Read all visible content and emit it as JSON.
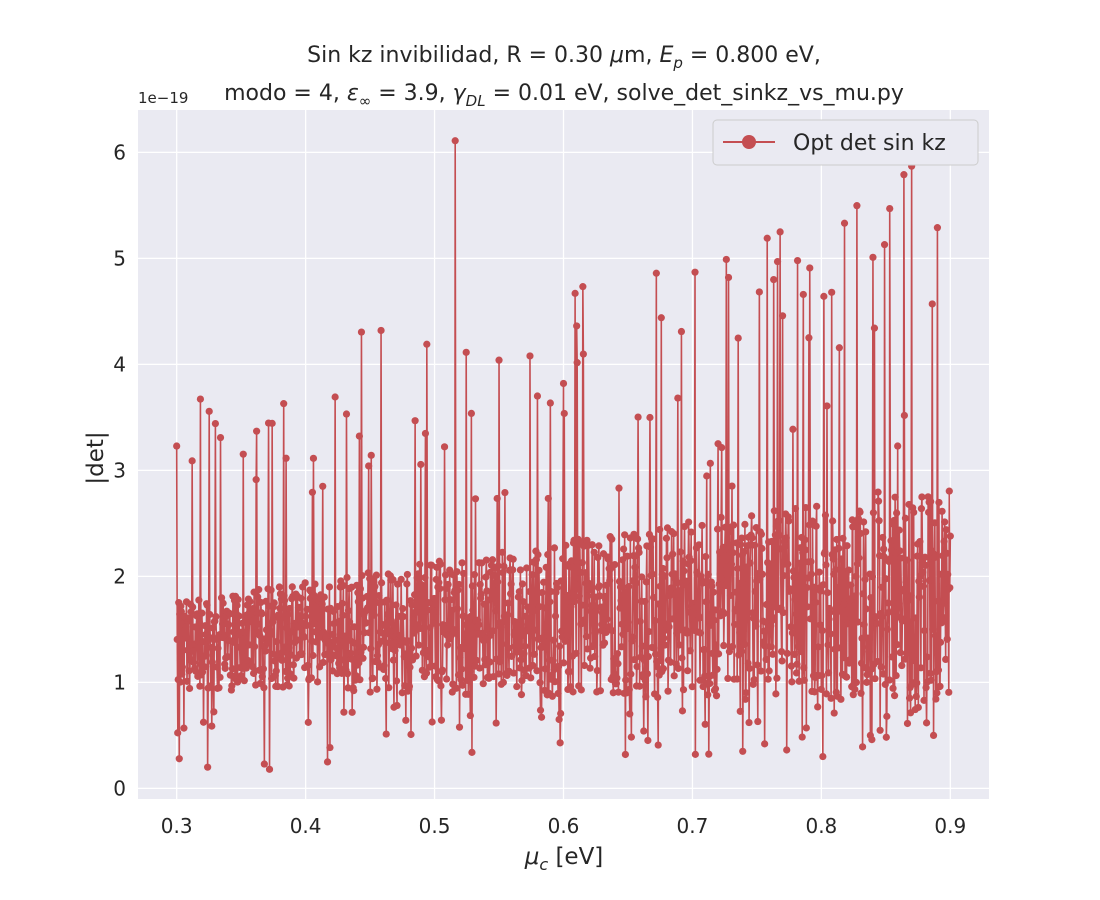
{
  "chart_data": {
    "type": "line",
    "title_lines": [
      "Sin kz invibilidad, R = 0.30 μm, E_p = 0.800 eV,",
      "modo = 4, ε_∞ = 3.9, γ_DL = 0.01 eV, solve_det_sinkz_vs_mu.py"
    ],
    "xlabel": "μ_c [eV]",
    "ylabel": "|det|",
    "y_offset_label": "1e−19",
    "xlim": [
      0.27,
      0.93
    ],
    "ylim": [
      -0.1,
      6.4
    ],
    "x_ticks": [
      0.3,
      0.4,
      0.5,
      0.6,
      0.7,
      0.8,
      0.9
    ],
    "x_tick_labels": [
      "0.3",
      "0.4",
      "0.5",
      "0.6",
      "0.7",
      "0.8",
      "0.9"
    ],
    "y_ticks": [
      0,
      1,
      2,
      3,
      4,
      5,
      6
    ],
    "y_tick_labels": [
      "0",
      "1",
      "2",
      "3",
      "4",
      "5",
      "6"
    ],
    "grid": true,
    "legend_position": "top-right",
    "series": [
      {
        "name": "Opt det sin kz",
        "color": "#c44e52",
        "marker": "circle",
        "x_range": [
          0.3,
          0.9
        ],
        "num_points": 1500,
        "trend_range": [
          1.3,
          1.75
        ],
        "random_seed": 42,
        "highlighted_peaks": [
          {
            "x": 0.3,
            "y": 3.23
          },
          {
            "x": 0.312,
            "y": 3.09
          },
          {
            "x": 0.334,
            "y": 3.31
          },
          {
            "x": 0.362,
            "y": 3.37
          },
          {
            "x": 0.383,
            "y": 3.63
          },
          {
            "x": 0.494,
            "y": 4.19
          },
          {
            "x": 0.516,
            "y": 6.11
          },
          {
            "x": 0.529,
            "y": 4.06
          },
          {
            "x": 0.55,
            "y": 4.04
          },
          {
            "x": 0.574,
            "y": 4.08
          },
          {
            "x": 0.6,
            "y": 3.82
          },
          {
            "x": 0.609,
            "y": 4.67
          },
          {
            "x": 0.648,
            "y": 4.5
          },
          {
            "x": 0.672,
            "y": 4.86
          },
          {
            "x": 0.702,
            "y": 4.87
          },
          {
            "x": 0.728,
            "y": 4.82
          },
          {
            "x": 0.758,
            "y": 5.19
          },
          {
            "x": 0.763,
            "y": 4.8
          },
          {
            "x": 0.766,
            "y": 4.97
          },
          {
            "x": 0.768,
            "y": 5.25
          },
          {
            "x": 0.786,
            "y": 4.66
          },
          {
            "x": 0.791,
            "y": 4.91
          },
          {
            "x": 0.808,
            "y": 4.68
          },
          {
            "x": 0.84,
            "y": 5.01
          },
          {
            "x": 0.849,
            "y": 5.13
          },
          {
            "x": 0.853,
            "y": 5.47
          },
          {
            "x": 0.864,
            "y": 5.79
          },
          {
            "x": 0.87,
            "y": 5.87
          },
          {
            "x": 0.886,
            "y": 4.57
          },
          {
            "x": 0.89,
            "y": 5.29
          }
        ],
        "highlighted_dips": [
          {
            "x": 0.302,
            "y": 0.28
          },
          {
            "x": 0.324,
            "y": 0.2
          },
          {
            "x": 0.372,
            "y": 0.18
          },
          {
            "x": 0.368,
            "y": 0.23
          },
          {
            "x": 0.417,
            "y": 0.25
          },
          {
            "x": 0.529,
            "y": 0.34
          },
          {
            "x": 0.648,
            "y": 0.32
          },
          {
            "x": 0.739,
            "y": 0.35
          },
          {
            "x": 0.756,
            "y": 0.42
          },
          {
            "x": 0.838,
            "y": 0.5
          },
          {
            "x": 0.887,
            "y": 0.5
          }
        ]
      }
    ]
  }
}
